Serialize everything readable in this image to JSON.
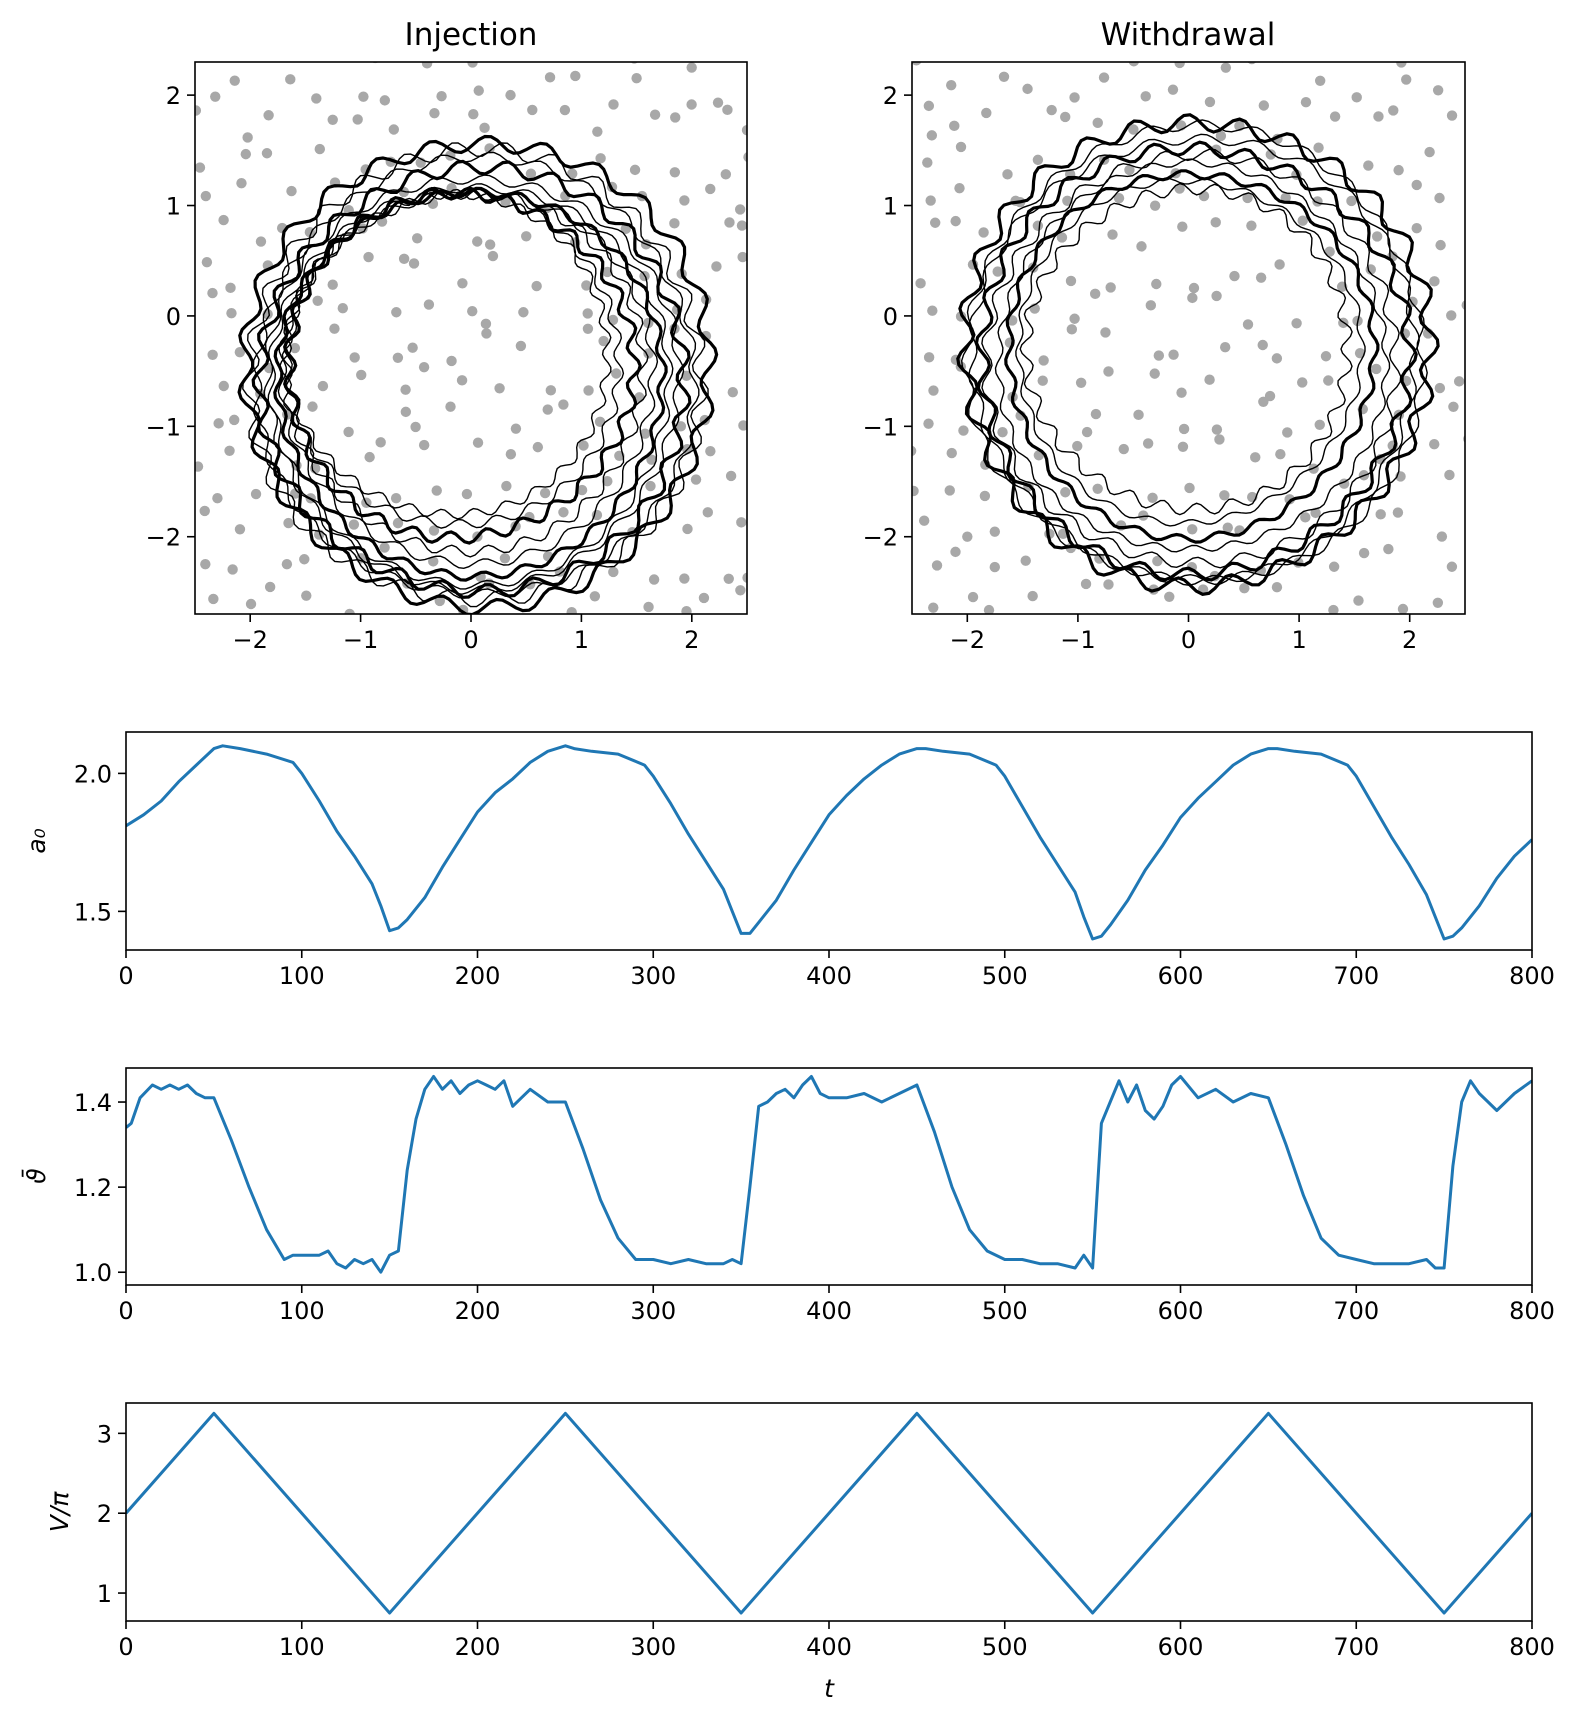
{
  "chart_data": [
    {
      "type": "scatter",
      "title": "Injection",
      "xlabel": "",
      "ylabel": "",
      "xlim": [
        -2.5,
        2.5
      ],
      "ylim": [
        -2.7,
        2.3
      ],
      "xticks": [
        -2,
        -1,
        0,
        1,
        2
      ],
      "yticks": [
        -2,
        -1,
        0,
        1,
        2
      ],
      "xtick_labels": [
        "−2",
        "−1",
        "0",
        "1",
        "2"
      ],
      "ytick_labels": [
        "−2",
        "−1",
        "0",
        "1",
        "2"
      ],
      "background": "grey scattered obstacle dots",
      "interfaces": [
        {
          "cx": -0.2,
          "cy": -0.35,
          "r": 1.45
        },
        {
          "cx": -0.15,
          "cy": -0.4,
          "r": 1.5
        },
        {
          "cx": -0.1,
          "cy": -0.45,
          "r": 1.56
        },
        {
          "cx": -0.05,
          "cy": -0.5,
          "r": 1.62
        },
        {
          "cx": -0.02,
          "cy": -0.55,
          "r": 1.68
        },
        {
          "cx": 0.0,
          "cy": -0.6,
          "r": 1.74
        },
        {
          "cx": 0.0,
          "cy": -0.62,
          "r": 1.8
        },
        {
          "cx": 0.02,
          "cy": -0.6,
          "r": 1.86
        },
        {
          "cx": 0.03,
          "cy": -0.58,
          "r": 1.92
        },
        {
          "cx": 0.05,
          "cy": -0.56,
          "r": 1.98
        },
        {
          "cx": 0.05,
          "cy": -0.55,
          "r": 2.04
        },
        {
          "cx": 0.07,
          "cy": -0.52,
          "r": 2.1
        }
      ]
    },
    {
      "type": "scatter",
      "title": "Withdrawal",
      "xlabel": "",
      "ylabel": "",
      "xlim": [
        -2.5,
        2.5
      ],
      "ylim": [
        -2.7,
        2.3
      ],
      "xticks": [
        -2,
        -1,
        0,
        1,
        2
      ],
      "yticks": [
        -2,
        -1,
        0,
        1,
        2
      ],
      "xtick_labels": [
        "−2",
        "−1",
        "0",
        "1",
        "2"
      ],
      "ytick_labels": [
        "−2",
        "−1",
        "0",
        "1",
        "2"
      ],
      "background": "grey scattered obstacle dots",
      "interfaces": [
        {
          "cx": 0.0,
          "cy": -0.3,
          "r": 1.45
        },
        {
          "cx": 0.0,
          "cy": -0.32,
          "r": 1.55
        },
        {
          "cx": 0.02,
          "cy": -0.35,
          "r": 1.65
        },
        {
          "cx": 0.03,
          "cy": -0.38,
          "r": 1.75
        },
        {
          "cx": 0.04,
          "cy": -0.4,
          "r": 1.85
        },
        {
          "cx": 0.05,
          "cy": -0.4,
          "r": 1.93
        },
        {
          "cx": 0.06,
          "cy": -0.38,
          "r": 2.0
        },
        {
          "cx": 0.07,
          "cy": -0.35,
          "r": 2.06
        },
        {
          "cx": 0.07,
          "cy": -0.33,
          "r": 2.1
        }
      ]
    },
    {
      "type": "line",
      "title": "",
      "xlabel": "",
      "ylabel": "a₀",
      "xlim": [
        0,
        800
      ],
      "ylim": [
        1.36,
        2.15
      ],
      "xticks": [
        0,
        100,
        200,
        300,
        400,
        500,
        600,
        700,
        800
      ],
      "yticks": [
        1.5,
        2.0
      ],
      "xtick_labels": [
        "0",
        "100",
        "200",
        "300",
        "400",
        "500",
        "600",
        "700",
        "800"
      ],
      "ytick_labels": [
        "1.5",
        "2.0"
      ],
      "x": [
        0,
        5,
        10,
        20,
        30,
        40,
        50,
        55,
        65,
        80,
        95,
        100,
        110,
        120,
        130,
        140,
        145,
        150,
        155,
        160,
        170,
        180,
        190,
        200,
        210,
        220,
        230,
        240,
        250,
        255,
        265,
        280,
        295,
        300,
        310,
        320,
        330,
        340,
        345,
        350,
        355,
        360,
        370,
        380,
        390,
        400,
        410,
        420,
        430,
        440,
        450,
        455,
        465,
        480,
        495,
        500,
        510,
        520,
        530,
        540,
        545,
        550,
        555,
        560,
        570,
        580,
        590,
        600,
        610,
        620,
        630,
        640,
        650,
        655,
        665,
        680,
        695,
        700,
        710,
        720,
        730,
        740,
        745,
        750,
        755,
        760,
        770,
        780,
        790,
        800
      ],
      "series": [
        {
          "values": [
            1.81,
            1.83,
            1.85,
            1.9,
            1.97,
            2.03,
            2.09,
            2.1,
            2.09,
            2.07,
            2.04,
            2.0,
            1.9,
            1.79,
            1.7,
            1.6,
            1.52,
            1.43,
            1.44,
            1.47,
            1.55,
            1.66,
            1.76,
            1.86,
            1.93,
            1.98,
            2.04,
            2.08,
            2.1,
            2.09,
            2.08,
            2.07,
            2.03,
            1.99,
            1.89,
            1.78,
            1.68,
            1.58,
            1.5,
            1.42,
            1.42,
            1.46,
            1.54,
            1.65,
            1.75,
            1.85,
            1.92,
            1.98,
            2.03,
            2.07,
            2.09,
            2.09,
            2.08,
            2.07,
            2.03,
            1.99,
            1.88,
            1.77,
            1.67,
            1.57,
            1.48,
            1.4,
            1.41,
            1.45,
            1.54,
            1.65,
            1.74,
            1.84,
            1.91,
            1.97,
            2.03,
            2.07,
            2.09,
            2.09,
            2.08,
            2.07,
            2.03,
            1.99,
            1.88,
            1.77,
            1.67,
            1.56,
            1.48,
            1.4,
            1.41,
            1.44,
            1.52,
            1.62,
            1.7,
            1.76
          ]
        }
      ]
    },
    {
      "type": "line",
      "title": "",
      "xlabel": "",
      "ylabel": "ϑ̄",
      "xlim": [
        0,
        800
      ],
      "ylim": [
        0.97,
        1.48
      ],
      "xticks": [
        0,
        100,
        200,
        300,
        400,
        500,
        600,
        700,
        800
      ],
      "yticks": [
        1.0,
        1.2,
        1.4
      ],
      "xtick_labels": [
        "0",
        "100",
        "200",
        "300",
        "400",
        "500",
        "600",
        "700",
        "800"
      ],
      "ytick_labels": [
        "1.0",
        "1.2",
        "1.4"
      ],
      "x": [
        0,
        3,
        8,
        15,
        20,
        25,
        30,
        35,
        40,
        45,
        50,
        60,
        70,
        80,
        90,
        95,
        100,
        110,
        115,
        120,
        125,
        130,
        135,
        140,
        145,
        150,
        155,
        160,
        165,
        170,
        175,
        180,
        185,
        190,
        195,
        200,
        205,
        210,
        215,
        220,
        225,
        230,
        240,
        250,
        260,
        270,
        280,
        290,
        300,
        310,
        320,
        330,
        340,
        345,
        350,
        355,
        360,
        365,
        370,
        375,
        380,
        385,
        390,
        395,
        400,
        410,
        420,
        430,
        440,
        450,
        460,
        470,
        480,
        490,
        500,
        510,
        520,
        530,
        540,
        545,
        550,
        555,
        560,
        565,
        570,
        575,
        580,
        585,
        590,
        595,
        600,
        610,
        620,
        630,
        640,
        650,
        660,
        670,
        680,
        690,
        700,
        710,
        720,
        730,
        740,
        745,
        750,
        755,
        760,
        765,
        770,
        775,
        780,
        785,
        790,
        800
      ],
      "series": [
        {
          "values": [
            1.34,
            1.35,
            1.41,
            1.44,
            1.43,
            1.44,
            1.43,
            1.44,
            1.42,
            1.41,
            1.41,
            1.31,
            1.2,
            1.1,
            1.03,
            1.04,
            1.04,
            1.04,
            1.05,
            1.02,
            1.01,
            1.03,
            1.02,
            1.03,
            1.0,
            1.04,
            1.05,
            1.24,
            1.36,
            1.43,
            1.46,
            1.43,
            1.45,
            1.42,
            1.44,
            1.45,
            1.44,
            1.43,
            1.45,
            1.39,
            1.41,
            1.43,
            1.4,
            1.4,
            1.29,
            1.17,
            1.08,
            1.03,
            1.03,
            1.02,
            1.03,
            1.02,
            1.02,
            1.03,
            1.02,
            1.2,
            1.39,
            1.4,
            1.42,
            1.43,
            1.41,
            1.44,
            1.46,
            1.42,
            1.41,
            1.41,
            1.42,
            1.4,
            1.42,
            1.44,
            1.33,
            1.2,
            1.1,
            1.05,
            1.03,
            1.03,
            1.02,
            1.02,
            1.01,
            1.04,
            1.01,
            1.35,
            1.4,
            1.45,
            1.4,
            1.44,
            1.38,
            1.36,
            1.39,
            1.44,
            1.46,
            1.41,
            1.43,
            1.4,
            1.42,
            1.41,
            1.3,
            1.18,
            1.08,
            1.04,
            1.03,
            1.02,
            1.02,
            1.02,
            1.03,
            1.01,
            1.01,
            1.25,
            1.4,
            1.45,
            1.42,
            1.4,
            1.38,
            1.4,
            1.42,
            1.45
          ]
        }
      ]
    },
    {
      "type": "line",
      "title": "",
      "xlabel": "t",
      "ylabel": "V/π",
      "xlim": [
        0,
        800
      ],
      "ylim": [
        0.65,
        3.38
      ],
      "xticks": [
        0,
        100,
        200,
        300,
        400,
        500,
        600,
        700,
        800
      ],
      "yticks": [
        1,
        2,
        3
      ],
      "xtick_labels": [
        "0",
        "100",
        "200",
        "300",
        "400",
        "500",
        "600",
        "700",
        "800"
      ],
      "ytick_labels": [
        "1",
        "2",
        "3"
      ],
      "x": [
        0,
        50,
        150,
        250,
        350,
        450,
        550,
        650,
        750,
        800
      ],
      "series": [
        {
          "values": [
            2.0,
            3.25,
            0.75,
            3.25,
            0.75,
            3.25,
            0.75,
            3.25,
            0.75,
            2.0
          ]
        }
      ]
    }
  ]
}
